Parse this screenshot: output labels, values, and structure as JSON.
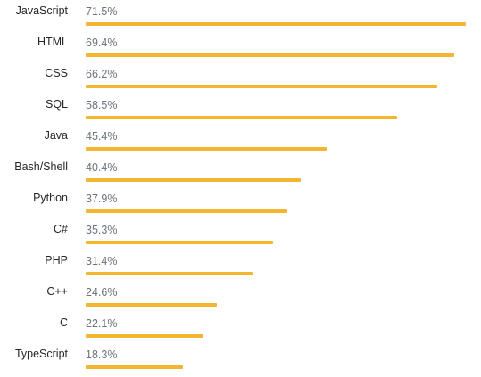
{
  "chart_data": {
    "type": "bar",
    "orientation": "horizontal",
    "categories": [
      "JavaScript",
      "HTML",
      "CSS",
      "SQL",
      "Java",
      "Bash/Shell",
      "Python",
      "C#",
      "PHP",
      "C++",
      "C",
      "TypeScript"
    ],
    "values": [
      71.5,
      69.4,
      66.2,
      58.5,
      45.4,
      40.4,
      37.9,
      35.3,
      31.4,
      24.6,
      22.1,
      18.3
    ],
    "value_labels": [
      "71.5%",
      "69.4%",
      "66.2%",
      "58.5%",
      "45.4%",
      "40.4%",
      "37.9%",
      "35.3%",
      "31.4%",
      "24.6%",
      "22.1%",
      "18.3%"
    ],
    "max_value": 71.5,
    "grid": false,
    "legend": "none"
  },
  "colors": {
    "bar": "#f4b630",
    "label": "#242729",
    "value_label": "#6a737c"
  }
}
